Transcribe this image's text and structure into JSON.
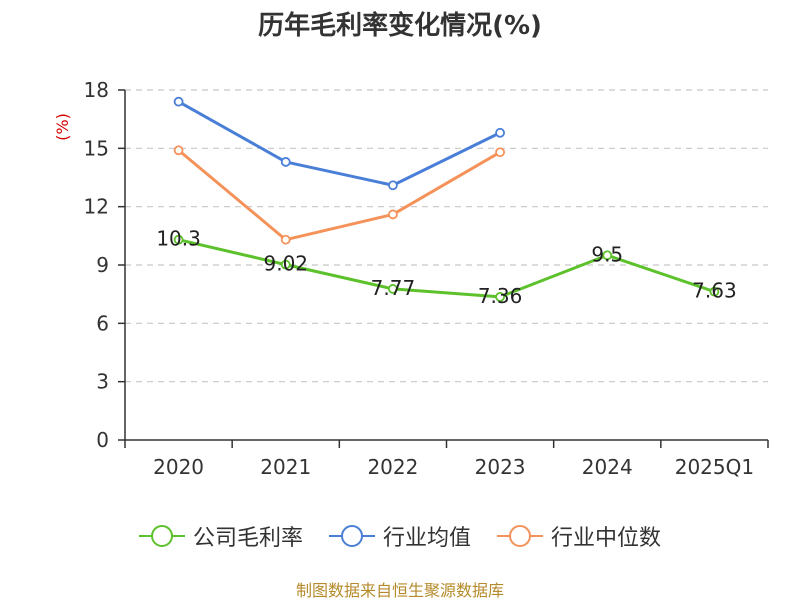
{
  "chart_data": {
    "type": "line",
    "title": "历年毛利率变化情况(%)",
    "ylabel": "(%)",
    "xlabel": "",
    "categories": [
      "2020",
      "2021",
      "2022",
      "2023",
      "2024",
      "2025Q1"
    ],
    "ylim": [
      0,
      18
    ],
    "yticks": [
      0,
      3,
      6,
      9,
      12,
      15,
      18
    ],
    "grid": true,
    "legend_position": "bottom",
    "series": [
      {
        "name": "公司毛利率",
        "color": "#5cc12b",
        "values": [
          10.3,
          9.02,
          7.77,
          7.36,
          9.5,
          7.63
        ],
        "labels": [
          "10.3",
          "9.02",
          "7.77",
          "7.36",
          "9.5",
          "7.63"
        ]
      },
      {
        "name": "行业均值",
        "color": "#4a7fd8",
        "values": [
          17.4,
          14.3,
          13.1,
          15.8,
          null,
          null
        ]
      },
      {
        "name": "行业中位数",
        "color": "#f5925a",
        "values": [
          14.9,
          10.3,
          11.6,
          14.8,
          null,
          null
        ]
      }
    ]
  },
  "source": "制图数据来自恒生聚源数据库"
}
